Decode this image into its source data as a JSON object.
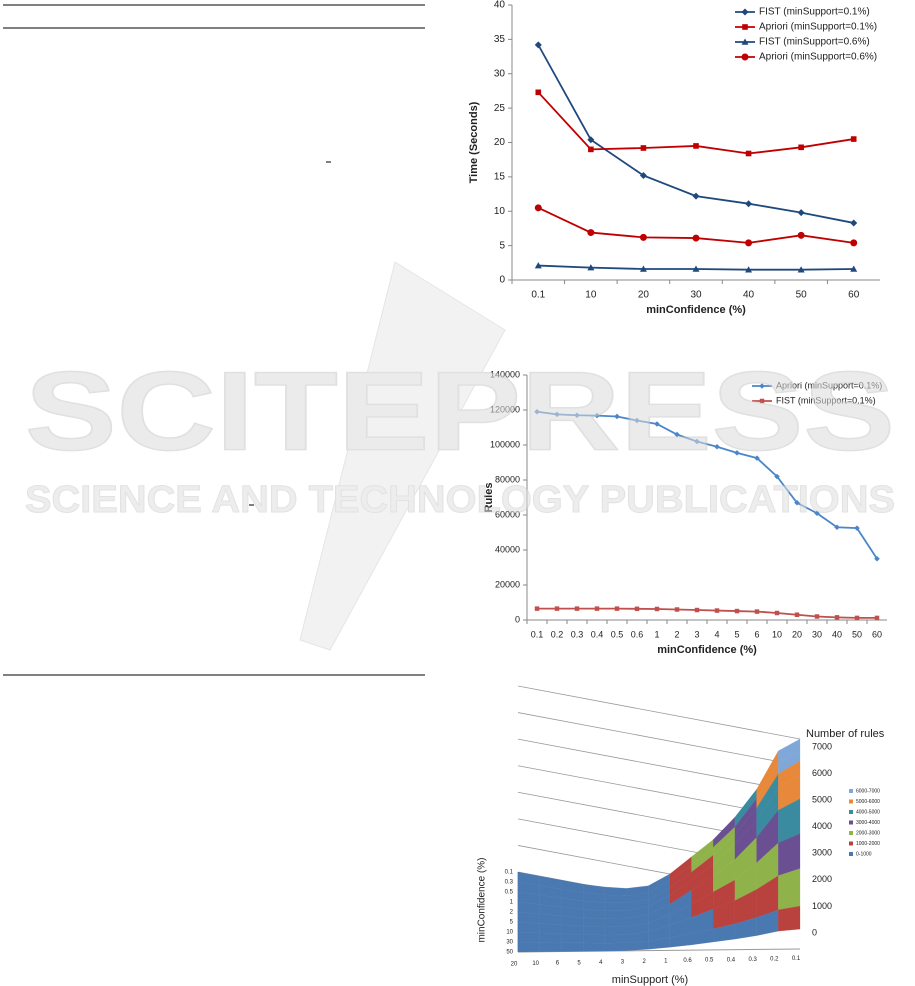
{
  "chart_data": [
    {
      "type": "line",
      "x_label": "minConfidence (%)",
      "y_label": "Time (Seconds)",
      "categories": [
        "0.1",
        "10",
        "20",
        "30",
        "40",
        "50",
        "60"
      ],
      "ylim": [
        0,
        40
      ],
      "yticks": [
        0,
        5,
        10,
        15,
        20,
        25,
        30,
        35,
        40
      ],
      "legend": "top-right",
      "series": [
        {
          "name": "FIST (minSupport=0.1%)",
          "color": "#1f497d",
          "marker": "diamond",
          "values": [
            34.2,
            20.4,
            15.2,
            12.2,
            11.1,
            9.8,
            8.3
          ]
        },
        {
          "name": "Apriori (minSupport=0.1%)",
          "color": "#c00000",
          "marker": "square",
          "values": [
            27.3,
            19.0,
            19.2,
            19.5,
            18.4,
            19.3,
            20.5
          ]
        },
        {
          "name": "FIST (minSupport=0.6%)",
          "color": "#1f497d",
          "marker": "triangle",
          "values": [
            2.1,
            1.8,
            1.6,
            1.6,
            1.5,
            1.5,
            1.6
          ]
        },
        {
          "name": "Apriori (minSupport=0.6%)",
          "color": "#c00000",
          "marker": "circle",
          "values": [
            10.5,
            6.9,
            6.2,
            6.1,
            5.4,
            6.5,
            5.4
          ]
        }
      ]
    },
    {
      "type": "line",
      "x_label": "minConfidence (%)",
      "y_label": "Rules",
      "categories": [
        "0.1",
        "0.2",
        "0.3",
        "0.4",
        "0.5",
        "0.6",
        "1",
        "2",
        "3",
        "4",
        "5",
        "6",
        "10",
        "20",
        "30",
        "40",
        "50",
        "60"
      ],
      "ylim": [
        0,
        140000
      ],
      "yticks": [
        0,
        20000,
        40000,
        60000,
        80000,
        100000,
        120000,
        140000
      ],
      "legend": "top-right",
      "series": [
        {
          "name": "Apriori (minSupport=0.1%)",
          "color": "#4a86c8",
          "marker": "diamond",
          "values": [
            119000,
            117500,
            117000,
            116800,
            116300,
            114000,
            112000,
            106000,
            102000,
            99000,
            95500,
            92500,
            82000,
            67000,
            61000,
            53000,
            52500,
            35000
          ]
        },
        {
          "name": "FIST (minSupport=0.1%)",
          "color": "#c0504d",
          "marker": "square",
          "values": [
            6500,
            6500,
            6500,
            6500,
            6500,
            6400,
            6300,
            6000,
            5700,
            5400,
            5100,
            4800,
            4000,
            3000,
            2000,
            1500,
            1200,
            1200
          ]
        }
      ]
    },
    {
      "type": "surface",
      "x_label": "minSupport (%)",
      "y_label": "minConfidence (%)",
      "z_label": "Number of rules",
      "x": [
        "20",
        "10",
        "6",
        "5",
        "4",
        "3",
        "2",
        "1",
        "0.6",
        "0.5",
        "0.4",
        "0.3",
        "0.2",
        "0.1"
      ],
      "y": [
        "0.1",
        "0.3",
        "0.5",
        "1",
        "2",
        "5",
        "10",
        "30",
        "50"
      ],
      "zlim": [
        0,
        7000
      ],
      "zticks": [
        0,
        1000,
        2000,
        3000,
        4000,
        5000,
        6000,
        7000
      ],
      "values": [
        [
          0,
          0,
          0,
          0,
          50,
          150,
          400,
          1000,
          1800,
          2600,
          3600,
          4800,
          6400,
          7000
        ],
        [
          0,
          0,
          0,
          0,
          50,
          150,
          400,
          1000,
          1700,
          2500,
          3400,
          4600,
          6100,
          6700
        ],
        [
          0,
          0,
          0,
          0,
          50,
          150,
          400,
          950,
          1650,
          2400,
          3300,
          4400,
          5800,
          6400
        ],
        [
          0,
          0,
          0,
          0,
          40,
          140,
          380,
          900,
          1550,
          2250,
          3100,
          4100,
          5400,
          6000
        ],
        [
          0,
          0,
          0,
          0,
          30,
          120,
          340,
          800,
          1400,
          2000,
          2700,
          3600,
          4700,
          5200
        ],
        [
          0,
          0,
          0,
          0,
          20,
          90,
          270,
          650,
          1100,
          1600,
          2100,
          2800,
          3600,
          4000
        ],
        [
          0,
          0,
          0,
          0,
          10,
          60,
          200,
          480,
          800,
          1150,
          1500,
          1950,
          2500,
          2800
        ],
        [
          0,
          0,
          0,
          0,
          0,
          30,
          100,
          250,
          420,
          600,
          800,
          1050,
          1350,
          1500
        ],
        [
          0,
          0,
          0,
          0,
          0,
          10,
          50,
          120,
          200,
          300,
          400,
          520,
          680,
          750
        ]
      ],
      "legend": "right",
      "series": [
        {
          "name": "6000-7000",
          "color": "#7fa8d8",
          "range": [
            6000,
            7000
          ]
        },
        {
          "name": "5000-6000",
          "color": "#e8883a",
          "range": [
            5000,
            6000
          ]
        },
        {
          "name": "4000-5000",
          "color": "#3a8aa0",
          "range": [
            4000,
            5000
          ]
        },
        {
          "name": "3000-4000",
          "color": "#6a4f92",
          "range": [
            3000,
            4000
          ]
        },
        {
          "name": "2000-3000",
          "color": "#8fb34a",
          "range": [
            2000,
            3000
          ]
        },
        {
          "name": "1000-2000",
          "color": "#b9413e",
          "range": [
            1000,
            2000
          ]
        },
        {
          "name": "0-1000",
          "color": "#4a78b0",
          "range": [
            0,
            1000
          ]
        }
      ]
    }
  ],
  "watermark": {
    "title": "SCITEPRESS",
    "subtitle": "SCIENCE AND TECHNOLOGY PUBLICATIONS"
  }
}
